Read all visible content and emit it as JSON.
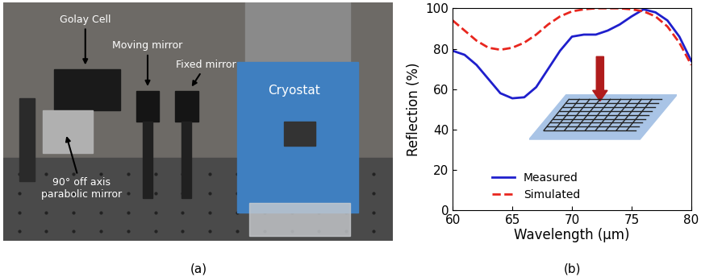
{
  "panel_labels": [
    "(a)",
    "(b)"
  ],
  "photo": {
    "labels": [
      "Golay Cell",
      "Moving mirror",
      "Fixed mirror",
      "Cryostat",
      "90° off axis\nparabolic mirror"
    ]
  },
  "chart_data": {
    "type": "line",
    "x_label": "Wavelength (μm)",
    "y_label": "Reflection (%)",
    "x": [
      60,
      61,
      62,
      63,
      64,
      65,
      66,
      67,
      68,
      69,
      70,
      71,
      72,
      73,
      74,
      75,
      76,
      77,
      78,
      79,
      80
    ],
    "series": [
      {
        "name": "Measured",
        "color": "#1f1fcc",
        "line_style": "solid",
        "values": [
          79,
          77,
          72,
          65,
          58,
          55.5,
          56,
          61,
          70,
          79,
          86,
          87,
          87,
          89,
          92,
          96,
          99.5,
          98,
          94,
          86,
          74
        ]
      },
      {
        "name": "Simulated",
        "color": "#e8261e",
        "line_style": "dashed",
        "values": [
          94,
          89,
          84,
          80.5,
          79.5,
          80.5,
          83,
          87,
          92,
          96,
          98.5,
          99.5,
          100,
          100,
          100,
          99.5,
          98.5,
          96,
          91,
          83,
          72
        ]
      }
    ],
    "xlim": [
      60,
      80
    ],
    "xticks": [
      60,
      65,
      70,
      75,
      80
    ],
    "ylim": [
      0,
      100
    ],
    "yticks": [
      0,
      20,
      40,
      60,
      80,
      100
    ],
    "legend": "lower center",
    "grid": false
  }
}
